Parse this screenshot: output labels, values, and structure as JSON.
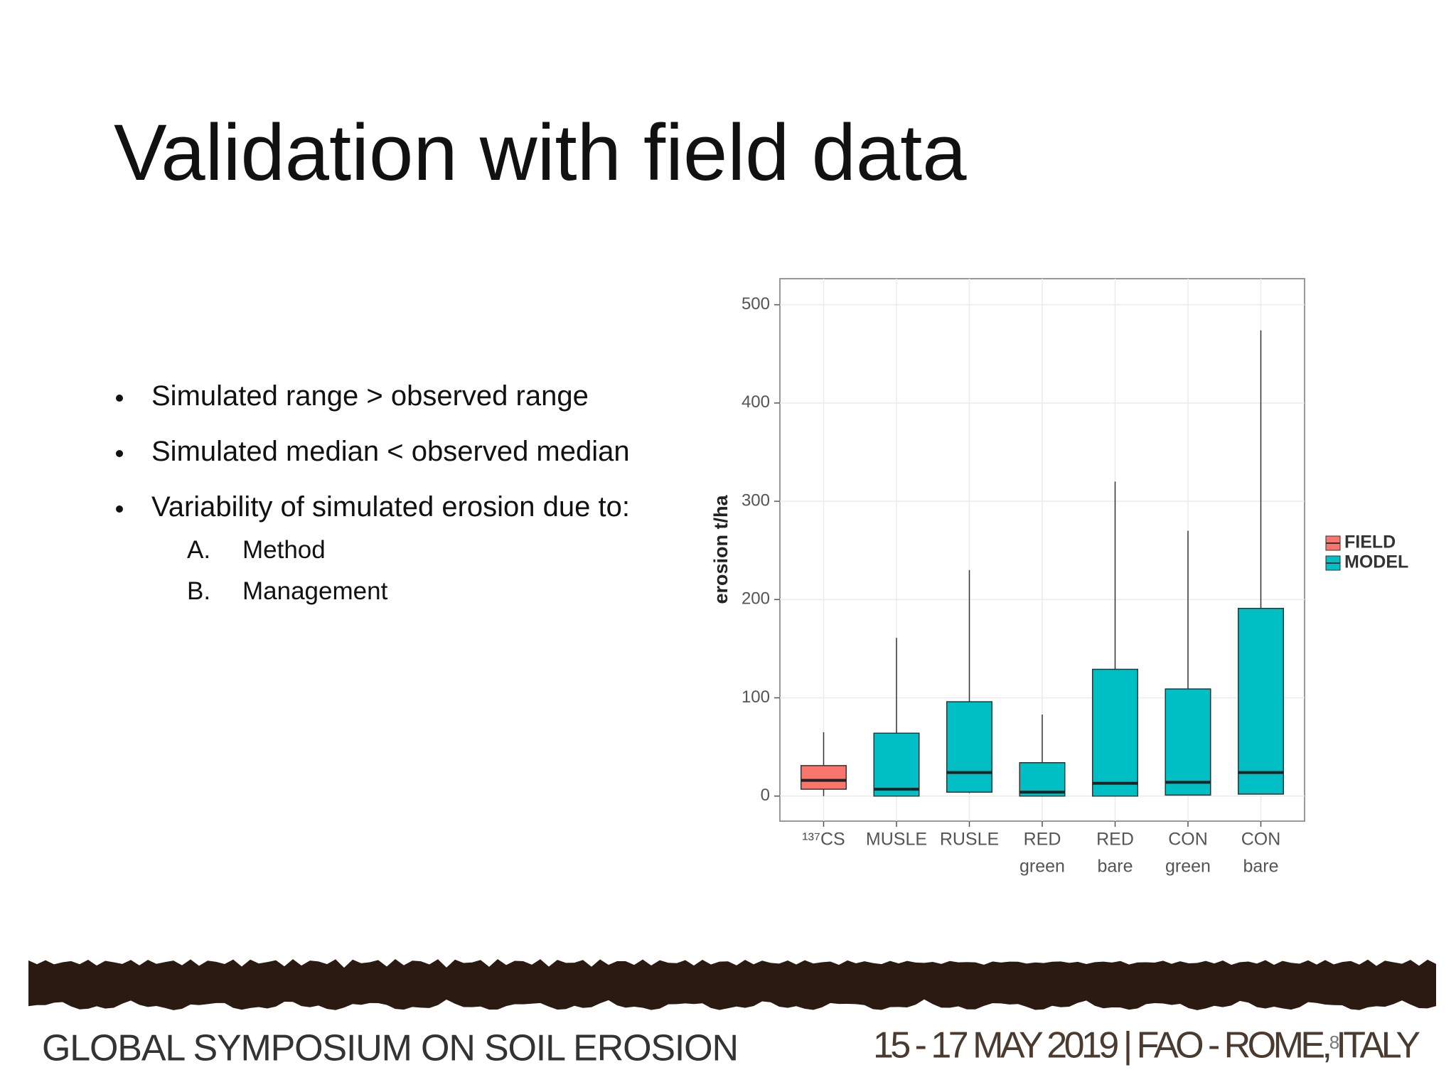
{
  "slide": {
    "title": "Validation with field data",
    "bullets": [
      "Simulated range > observed range",
      "Simulated median < observed median",
      "Variability of simulated erosion due to:"
    ],
    "sub_bullets": [
      {
        "marker": "A.",
        "text": "Method"
      },
      {
        "marker": "B.",
        "text": "Management"
      }
    ],
    "footer": {
      "left": "GLOBAL SYMPOSIUM ON SOIL EROSION",
      "right": "15 - 17 MAY 2019 | FAO - ROME, ITALY"
    },
    "slide_number": "8"
  },
  "chart_data": {
    "type": "box",
    "y_label": "erosion t/ha",
    "categories": [
      [
        "¹³⁷CS"
      ],
      [
        "MUSLE"
      ],
      [
        "RUSLE"
      ],
      [
        "RED",
        "green"
      ],
      [
        "RED",
        "bare"
      ],
      [
        "CON",
        "green"
      ],
      [
        "CON",
        "bare"
      ]
    ],
    "series": [
      {
        "name": "FIELD",
        "color": "#F8766D",
        "min": [
          0,
          null,
          null,
          null,
          null,
          null,
          null
        ],
        "q1": [
          7,
          null,
          null,
          null,
          null,
          null,
          null
        ],
        "median": [
          16,
          null,
          null,
          null,
          null,
          null,
          null
        ],
        "q3": [
          31,
          null,
          null,
          null,
          null,
          null,
          null
        ],
        "max": [
          65,
          null,
          null,
          null,
          null,
          null,
          null
        ]
      },
      {
        "name": "MODEL",
        "color": "#00BFC4",
        "min": [
          null,
          0,
          3,
          0,
          0,
          1,
          2
        ],
        "q1": [
          null,
          0,
          4,
          0,
          0,
          1,
          2
        ],
        "median": [
          null,
          7,
          24,
          4,
          13,
          14,
          24
        ],
        "q3": [
          null,
          64,
          96,
          34,
          129,
          109,
          191
        ],
        "max": [
          null,
          161,
          230,
          83,
          320,
          270,
          474
        ]
      }
    ],
    "ylim": [
      -25.5,
      526.5
    ],
    "yticks": [
      0,
      100,
      200,
      300,
      400,
      500
    ],
    "grid": true,
    "legend": "right"
  }
}
